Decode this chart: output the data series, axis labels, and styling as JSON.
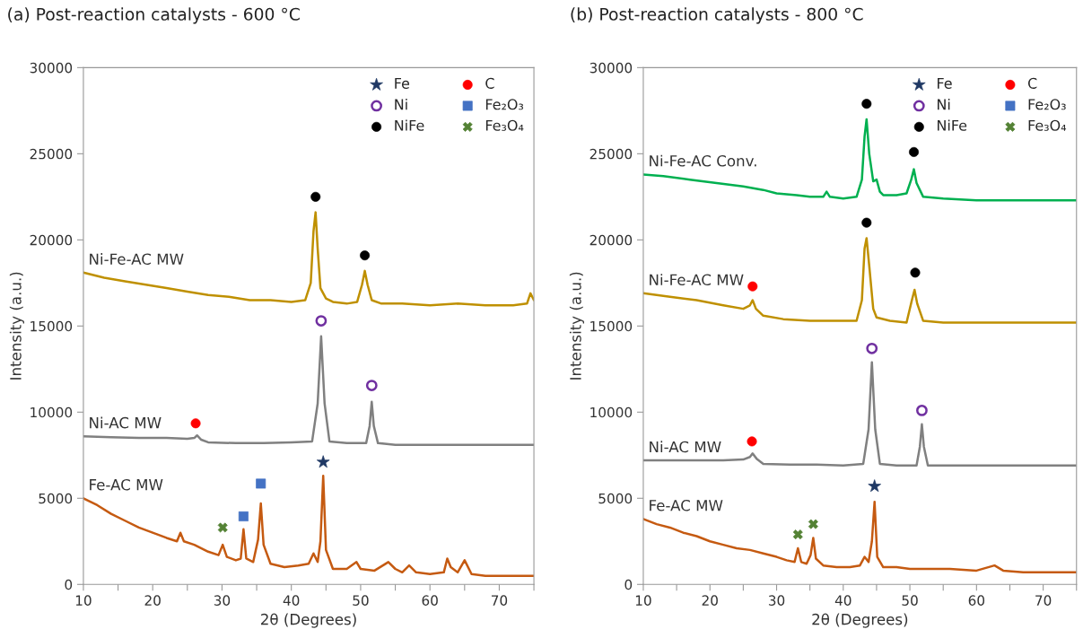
{
  "chart_data": [
    {
      "type": "line",
      "title": "(a) Post-reaction catalysts - 600 °C",
      "xlabel": "2θ (Degrees)",
      "ylabel": "Intensity (a.u.)",
      "xlim": [
        10,
        75
      ],
      "xticks": [
        10,
        {
          "value": 15,
          "label": null
        },
        20,
        {
          "value": 25,
          "label": null
        },
        30,
        {
          "value": 35,
          "label": null
        },
        40,
        {
          "value": 45,
          "label": null
        },
        50,
        {
          "value": 55,
          "label": null
        },
        60,
        {
          "value": 65,
          "label": null
        },
        70,
        {
          "value": 75,
          "label": null
        }
      ],
      "ylim": [
        0,
        30000
      ],
      "yticks": [
        0,
        5000,
        10000,
        15000,
        20000,
        25000,
        30000
      ],
      "legend": "top right",
      "grid": false,
      "series": [
        {
          "name": "Ni-Fe-AC MW",
          "color": "#bf9000",
          "x": [
            10,
            13,
            16,
            19,
            22,
            25,
            28,
            31,
            34,
            37,
            40,
            42,
            42.8,
            43.2,
            43.5,
            43.8,
            44.2,
            45,
            46,
            48,
            49.5,
            50.2,
            50.6,
            51,
            51.6,
            53,
            56,
            60,
            64,
            68,
            72,
            74,
            74.5,
            75
          ],
          "values": [
            18100,
            17800,
            17600,
            17400,
            17200,
            17000,
            16800,
            16700,
            16500,
            16500,
            16400,
            16500,
            17500,
            20500,
            21600,
            19500,
            17200,
            16600,
            16400,
            16300,
            16400,
            17400,
            18200,
            17400,
            16500,
            16300,
            16300,
            16200,
            16300,
            16200,
            16200,
            16300,
            16900,
            16500
          ]
        },
        {
          "name": "Ni-AC MW",
          "color": "#808080",
          "x": [
            10,
            14,
            18,
            22,
            25,
            26,
            26.4,
            27,
            28,
            32,
            36,
            40,
            43,
            43.8,
            44.3,
            44.8,
            45.5,
            48,
            50.8,
            51.3,
            51.6,
            51.9,
            52.5,
            55,
            60,
            65,
            70,
            75
          ],
          "values": [
            8600,
            8550,
            8500,
            8500,
            8450,
            8500,
            8650,
            8400,
            8250,
            8200,
            8200,
            8250,
            8300,
            10500,
            14400,
            10500,
            8300,
            8200,
            8200,
            9200,
            10600,
            9200,
            8200,
            8100,
            8100,
            8100,
            8100,
            8100
          ]
        },
        {
          "name": "Fe-AC MW",
          "color": "#c55a11",
          "x": [
            10,
            12,
            14,
            16,
            18,
            20,
            22,
            23.5,
            24,
            24.5,
            26,
            28,
            29.5,
            30.1,
            30.7,
            32,
            32.7,
            33.1,
            33.5,
            34.5,
            35.2,
            35.6,
            36,
            37,
            39,
            41,
            42.5,
            43.2,
            43.8,
            44.2,
            44.6,
            45,
            46,
            48,
            49.4,
            50,
            52,
            54,
            55,
            56,
            57,
            58,
            60,
            62,
            62.5,
            63,
            64,
            65,
            66,
            68,
            70,
            72,
            75
          ],
          "values": [
            5000,
            4600,
            4100,
            3700,
            3300,
            3000,
            2700,
            2500,
            3000,
            2500,
            2300,
            1900,
            1700,
            2300,
            1600,
            1400,
            1500,
            3200,
            1500,
            1300,
            2600,
            4700,
            2300,
            1200,
            1000,
            1100,
            1200,
            1800,
            1300,
            2500,
            6300,
            2000,
            900,
            900,
            1300,
            900,
            800,
            1300,
            900,
            700,
            1100,
            700,
            600,
            700,
            1500,
            1000,
            700,
            1400,
            600,
            500,
            500,
            500,
            500
          ]
        },
        {
          "type": "scatter",
          "name": "Fe",
          "color": "#1f3864",
          "marker": "star",
          "x": [
            44.6
          ],
          "values": [
            7100
          ]
        },
        {
          "type": "scatter",
          "name": "Ni",
          "color": "#7030a0",
          "marker": "circle-open",
          "x": [
            44.3,
            51.6
          ],
          "values": [
            15300,
            11550
          ]
        },
        {
          "type": "scatter",
          "name": "NiFe",
          "color": "#000000",
          "marker": "circle",
          "x": [
            43.5,
            50.6
          ],
          "values": [
            22500,
            19100
          ]
        },
        {
          "type": "scatter",
          "name": "C",
          "color": "#ff0000",
          "marker": "circle",
          "x": [
            26.2
          ],
          "values": [
            9350
          ]
        },
        {
          "type": "scatter",
          "name": "Fe₂O₃",
          "color": "#4472c4",
          "marker": "square",
          "x": [
            33.1,
            35.6
          ],
          "values": [
            3950,
            5850
          ]
        },
        {
          "type": "scatter",
          "name": "Fe₃O₄",
          "color": "#548235",
          "marker": "cross",
          "x": [
            30.1
          ],
          "values": [
            3300
          ]
        }
      ]
    },
    {
      "type": "line",
      "title": "(b) Post-reaction catalysts - 800 °C",
      "xlabel": "2θ (Degrees)",
      "ylabel": "Intensity (a.u.)",
      "xlim": [
        10,
        75
      ],
      "xticks": [
        10,
        {
          "value": 15,
          "label": null
        },
        20,
        {
          "value": 25,
          "label": null
        },
        30,
        {
          "value": 35,
          "label": null
        },
        40,
        {
          "value": 45,
          "label": null
        },
        50,
        {
          "value": 55,
          "label": null
        },
        60,
        {
          "value": 65,
          "label": null
        },
        70,
        {
          "value": 75,
          "label": null
        }
      ],
      "ylim": [
        0,
        30000
      ],
      "yticks": [
        0,
        5000,
        10000,
        15000,
        20000,
        25000,
        30000
      ],
      "legend": "top right",
      "grid": false,
      "series": [
        {
          "name": "Ni-Fe-AC Conv.",
          "color": "#00b050",
          "x": [
            10,
            13,
            17,
            21,
            25,
            28,
            30,
            33,
            35,
            37,
            37.5,
            38,
            40,
            42,
            42.8,
            43.2,
            43.5,
            43.9,
            44.5,
            45,
            45.5,
            46,
            48,
            49.5,
            50.2,
            50.6,
            51,
            52,
            55,
            60,
            65,
            70,
            75
          ],
          "values": [
            23800,
            23700,
            23500,
            23300,
            23100,
            22900,
            22700,
            22600,
            22500,
            22500,
            22800,
            22500,
            22400,
            22500,
            23500,
            26000,
            27000,
            25000,
            23400,
            23500,
            22800,
            22600,
            22600,
            22700,
            23500,
            24100,
            23300,
            22500,
            22400,
            22300,
            22300,
            22300,
            22300
          ]
        },
        {
          "name": "Ni-Fe-AC MW",
          "color": "#bf9000",
          "x": [
            10,
            14,
            18,
            22,
            25,
            26,
            26.4,
            26.9,
            28,
            31,
            35,
            38,
            42,
            42.8,
            43.2,
            43.5,
            43.9,
            44.5,
            45,
            47,
            49.5,
            50.3,
            50.7,
            51.1,
            52,
            55,
            60,
            65,
            70,
            75
          ],
          "values": [
            16900,
            16700,
            16500,
            16200,
            16000,
            16200,
            16500,
            16000,
            15600,
            15400,
            15300,
            15300,
            15300,
            16500,
            19500,
            20100,
            18500,
            16000,
            15500,
            15300,
            15200,
            16500,
            17100,
            16300,
            15300,
            15200,
            15200,
            15200,
            15200,
            15200
          ]
        },
        {
          "name": "Ni-AC MW",
          "color": "#808080",
          "x": [
            10,
            14,
            18,
            22,
            25,
            26,
            26.4,
            27,
            28,
            32,
            36,
            40,
            43,
            43.8,
            44.3,
            44.8,
            45.5,
            48,
            51,
            51.5,
            51.8,
            52.1,
            52.7,
            55,
            60,
            65,
            70,
            75
          ],
          "values": [
            7200,
            7200,
            7200,
            7200,
            7250,
            7400,
            7600,
            7300,
            7000,
            6950,
            6950,
            6900,
            7000,
            9000,
            12900,
            9000,
            7000,
            6900,
            6900,
            8000,
            9300,
            8000,
            6900,
            6900,
            6900,
            6900,
            6900,
            6900
          ]
        },
        {
          "name": "Fe-AC MW",
          "color": "#c55a11",
          "x": [
            10,
            12,
            14,
            16,
            18,
            20,
            22,
            24,
            26,
            28,
            30,
            31.5,
            32.7,
            33.2,
            33.7,
            34.5,
            35.1,
            35.5,
            35.9,
            37,
            39,
            41,
            42.5,
            43.2,
            43.8,
            44.3,
            44.7,
            45.1,
            46,
            48,
            50,
            53,
            56,
            60,
            62.7,
            64,
            67,
            70,
            72,
            75
          ],
          "values": [
            3800,
            3500,
            3300,
            3000,
            2800,
            2500,
            2300,
            2100,
            2000,
            1800,
            1600,
            1400,
            1300,
            2100,
            1300,
            1200,
            1700,
            2700,
            1500,
            1100,
            1000,
            1000,
            1100,
            1600,
            1300,
            2500,
            4800,
            1600,
            1000,
            1000,
            900,
            900,
            900,
            800,
            1100,
            800,
            700,
            700,
            700,
            700
          ]
        },
        {
          "type": "scatter",
          "name": "Fe",
          "color": "#1f3864",
          "marker": "star",
          "x": [
            44.7
          ],
          "values": [
            5700
          ]
        },
        {
          "type": "scatter",
          "name": "Ni",
          "color": "#7030a0",
          "marker": "circle-open",
          "x": [
            44.3,
            51.8
          ],
          "values": [
            13700,
            10100
          ]
        },
        {
          "type": "scatter",
          "name": "NiFe",
          "color": "#000000",
          "marker": "circle",
          "x": [
            43.5,
            50.6,
            43.5,
            50.8
          ],
          "values": [
            27900,
            25100,
            21000,
            18100
          ]
        },
        {
          "type": "scatter",
          "name": "C",
          "color": "#ff0000",
          "marker": "circle",
          "x": [
            26.4,
            26.3
          ],
          "values": [
            17300,
            8300
          ]
        },
        {
          "type": "scatter",
          "name": "Fe₂O₃",
          "color": "#4472c4",
          "marker": "square"
        },
        {
          "type": "scatter",
          "name": "Fe₃O₄",
          "color": "#548235",
          "marker": "cross",
          "x": [
            33.2,
            35.5
          ],
          "values": [
            2900,
            3500
          ]
        }
      ]
    }
  ]
}
